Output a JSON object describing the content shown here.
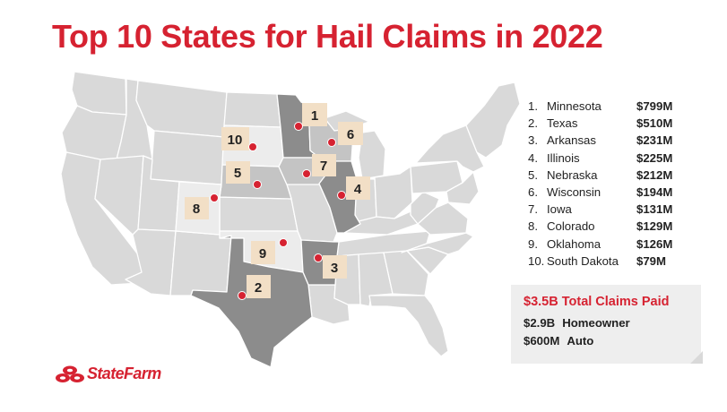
{
  "title": "Top 10 States for Hail Claims in 2022",
  "rankings": [
    {
      "rank": "1.",
      "state": "Minnesota",
      "amount": "$799M"
    },
    {
      "rank": "2.",
      "state": "Texas",
      "amount": "$510M"
    },
    {
      "rank": "3.",
      "state": "Arkansas",
      "amount": "$231M"
    },
    {
      "rank": "4.",
      "state": "Illinois",
      "amount": "$225M"
    },
    {
      "rank": "5.",
      "state": "Nebraska",
      "amount": "$212M"
    },
    {
      "rank": "6.",
      "state": "Wisconsin",
      "amount": "$194M"
    },
    {
      "rank": "7.",
      "state": "Iowa",
      "amount": "$131M"
    },
    {
      "rank": "8.",
      "state": "Colorado",
      "amount": "$129M"
    },
    {
      "rank": "9.",
      "state": "Oklahoma",
      "amount": "$126M"
    },
    {
      "rank": "10.",
      "state": "South Dakota",
      "amount": "$79M"
    }
  ],
  "map_markers": [
    {
      "label": "1",
      "state": "Minnesota"
    },
    {
      "label": "2",
      "state": "Texas"
    },
    {
      "label": "3",
      "state": "Arkansas"
    },
    {
      "label": "4",
      "state": "Illinois"
    },
    {
      "label": "5",
      "state": "Nebraska"
    },
    {
      "label": "6",
      "state": "Wisconsin"
    },
    {
      "label": "7",
      "state": "Iowa"
    },
    {
      "label": "8",
      "state": "Colorado"
    },
    {
      "label": "9",
      "state": "Oklahoma"
    },
    {
      "label": "10",
      "state": "South Dakota"
    }
  ],
  "summary": {
    "total": "$3.5B Total Claims Paid",
    "homeowner_amount": "$2.9B",
    "homeowner_label": "Homeowner",
    "auto_amount": "$600M",
    "auto_label": "Auto"
  },
  "logo": {
    "text": "StateFarm"
  },
  "colors": {
    "brand_red": "#d62231",
    "map_base": "#d9d9d9",
    "map_light": "#e8e8e8",
    "rank_dark": "#8c8c8c",
    "rank_mid": "#ababab",
    "rank_light": "#c4c4c4",
    "rank_pale": "#ececec",
    "label_bg": "#f2dfc6",
    "border": "#ffffff"
  }
}
